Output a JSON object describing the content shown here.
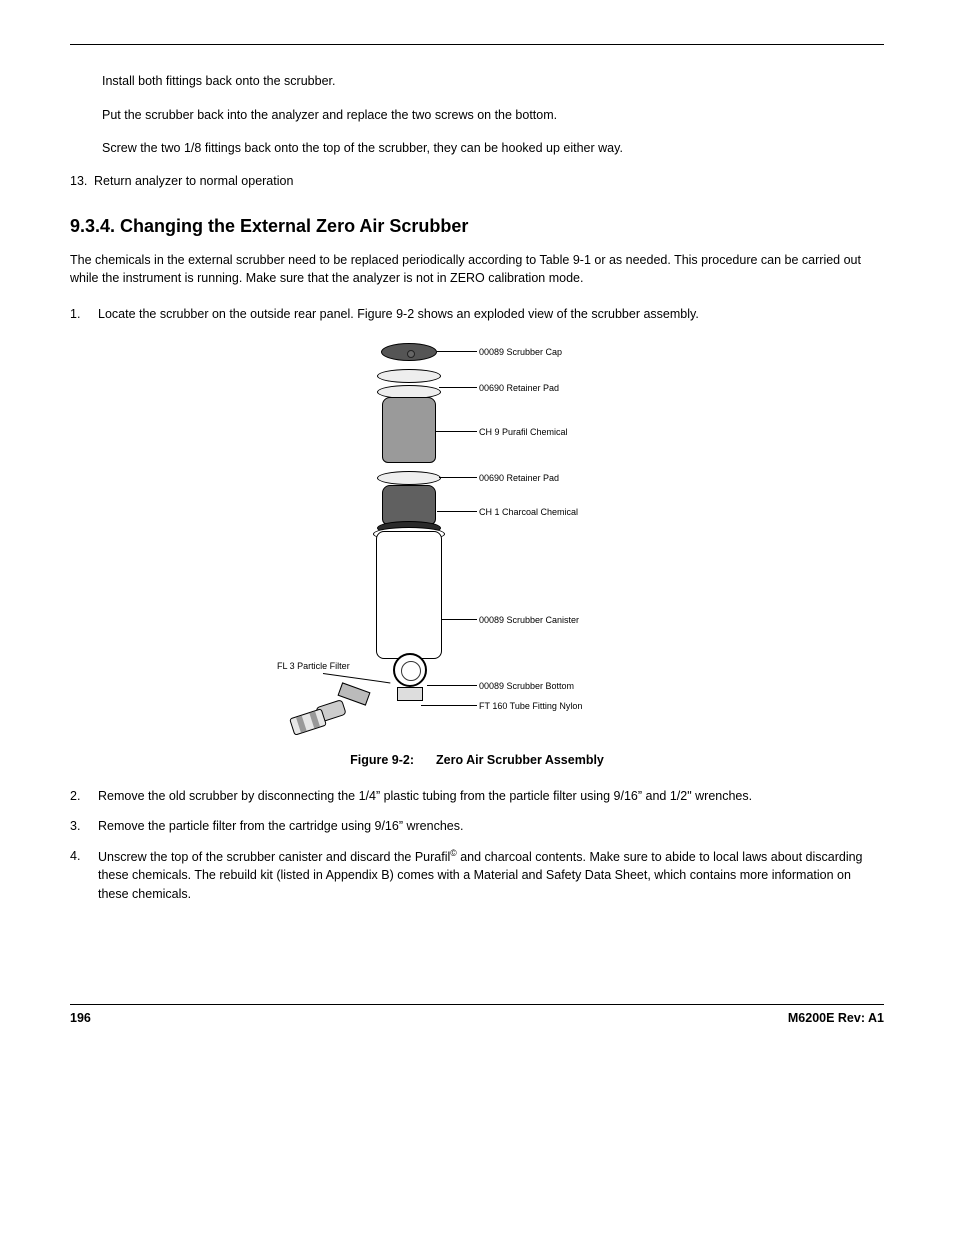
{
  "continuation": {
    "line1": "Install both fittings back onto the scrubber.",
    "line2": "Put the scrubber back into the analyzer and replace the two screws on the bottom.",
    "line3": "Screw the two 1/8 fittings back onto the top of the scrubber, they can be hooked up either way."
  },
  "step13": {
    "num": "13.",
    "text": "Return analyzer to normal operation"
  },
  "heading": "9.3.4. Changing the External Zero Air Scrubber",
  "intro": "The chemicals in the external scrubber need to be replaced periodically according to Table 9-1 or as needed. This procedure can be carried out while the instrument is running. Make sure that the analyzer is not in ZERO calibration mode.",
  "steps": {
    "s1n": "1.",
    "s1": "Locate the scrubber on the outside rear panel. Figure 9-2 shows an exploded view of the scrubber assembly.",
    "s2n": "2.",
    "s2": "Remove the old scrubber by disconnecting the 1/4” plastic tubing from the particle filter using 9/16” and 1/2\" wrenches.",
    "s3n": "3.",
    "s3": "Remove the particle filter from the cartridge using 9/16” wrenches.",
    "s4n": "4.",
    "s4a": "Unscrew the top of the scrubber canister and discard the Purafil",
    "s4b": " and charcoal contents. Make sure to abide to local laws about discarding these chemicals. The rebuild kit (listed in Appendix B) comes with a Material and Safety Data Sheet, which contains more information on these chemicals."
  },
  "figure": {
    "captionA": "Figure 9-2:",
    "captionB": "Zero Air Scrubber Assembly",
    "labels": {
      "l1": "00089 Scrubber Cap",
      "l2": "00690 Retainer Pad",
      "l3": "CH 9 Purafil Chemical",
      "l4": "00690 Retainer Pad",
      "l5": "CH 1 Charcoal Chemical",
      "l6": "00089 Scrubber Canister",
      "l7": "00089 Scrubber Bottom",
      "l8": "FT 160 Tube Fitting Nylon",
      "ll": "FL 3 Particle Filter"
    }
  },
  "footer": {
    "page": "196",
    "rev": "M6200E Rev: A1"
  }
}
